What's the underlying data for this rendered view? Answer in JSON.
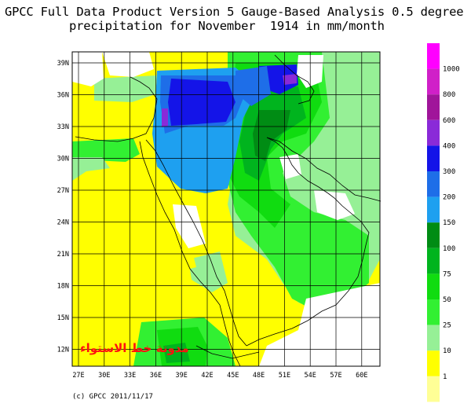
{
  "title": {
    "line1": "GPCC Full Data Product Version 5 Gauge-Based Analysis 0.5 degree",
    "line2": "precipitation for November  1914 in mm/month"
  },
  "map": {
    "lat_ticks": [
      "39N",
      "36N",
      "33N",
      "30N",
      "27N",
      "24N",
      "21N",
      "18N",
      "15N",
      "12N"
    ],
    "lon_ticks": [
      "27E",
      "30E",
      "33E",
      "36E",
      "39E",
      "42E",
      "45E",
      "48E",
      "51E",
      "54E",
      "57E",
      "60E"
    ]
  },
  "legend": {
    "levels": [
      {
        "label": "1000",
        "color": "#ff00ff"
      },
      {
        "label": "800",
        "color": "#d020c8"
      },
      {
        "label": "600",
        "color": "#a0159a"
      },
      {
        "label": "400",
        "color": "#8a2ad8"
      },
      {
        "label": "300",
        "color": "#1414e8"
      },
      {
        "label": "200",
        "color": "#1e6ee8"
      },
      {
        "label": "150",
        "color": "#1ea0f0"
      },
      {
        "label": "100",
        "color": "#008c14"
      },
      {
        "label": "75",
        "color": "#00b41e"
      },
      {
        "label": "50",
        "color": "#10dc10"
      },
      {
        "label": "25",
        "color": "#32f032"
      },
      {
        "label": "10",
        "color": "#96f096"
      },
      {
        "label": "1",
        "color": "#ffff00"
      },
      {
        "label": "",
        "color": "#ffff96"
      }
    ]
  },
  "credit": "(c) GPCC 2011/11/17",
  "watermark": "مدونة خط الاستواء"
}
